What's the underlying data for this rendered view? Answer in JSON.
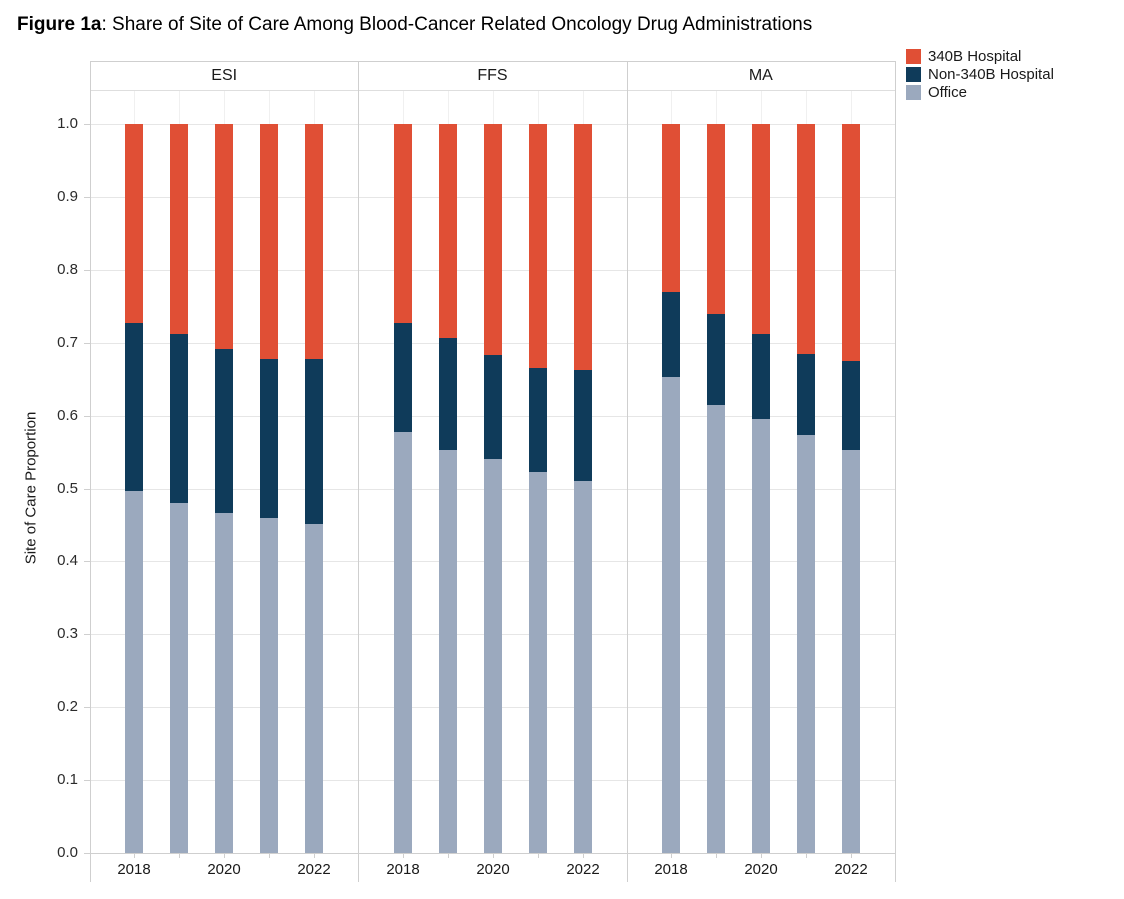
{
  "title": {
    "prefix": "Figure 1a",
    "rest": ": Share of Site of Care Among Blood-Cancer Related Oncology Drug Administrations"
  },
  "legend": {
    "items": [
      {
        "label": "340B Hospital",
        "color": "#E04F35"
      },
      {
        "label": "Non-340B Hospital",
        "color": "#0F3B5A"
      },
      {
        "label": "Office",
        "color": "#9BA9BE"
      }
    ]
  },
  "y_axis": {
    "title": "Site of Care Proportion",
    "tick_labels": [
      "0.0",
      "0.1",
      "0.2",
      "0.3",
      "0.4",
      "0.5",
      "0.6",
      "0.7",
      "0.8",
      "0.9",
      "1.0"
    ]
  },
  "x_axis": {
    "labeled_years": [
      "2018",
      "2020",
      "2022"
    ]
  },
  "chart_data": {
    "type": "bar",
    "stacked": true,
    "title": "Figure 1a: Share of Site of Care Among Blood-Cancer Related Oncology Drug Administrations",
    "xlabel": "",
    "ylabel": "Site of Care Proportion",
    "ylim": [
      0.0,
      1.0
    ],
    "grid": true,
    "legend_position": "top-right",
    "facet_labels": [
      "ESI",
      "FFS",
      "MA"
    ],
    "years": [
      2018,
      2019,
      2020,
      2021,
      2022
    ],
    "stack_order_bottom_to_top": [
      "Office",
      "Non-340B Hospital",
      "340B Hospital"
    ],
    "colors": {
      "340B Hospital": "#E04F35",
      "Non-340B Hospital": "#0F3B5A",
      "Office": "#9BA9BE"
    },
    "facets": [
      {
        "label": "ESI",
        "series": {
          "Office": [
            0.497,
            0.48,
            0.467,
            0.46,
            0.451
          ],
          "Non-340B Hospital": [
            0.23,
            0.232,
            0.225,
            0.217,
            0.226
          ],
          "340B Hospital": [
            0.273,
            0.288,
            0.308,
            0.323,
            0.323
          ]
        }
      },
      {
        "label": "FFS",
        "series": {
          "Office": [
            0.577,
            0.553,
            0.54,
            0.522,
            0.51
          ],
          "Non-340B Hospital": [
            0.15,
            0.154,
            0.143,
            0.143,
            0.153
          ],
          "340B Hospital": [
            0.273,
            0.293,
            0.317,
            0.335,
            0.337
          ]
        }
      },
      {
        "label": "MA",
        "series": {
          "Office": [
            0.653,
            0.615,
            0.596,
            0.573,
            0.553
          ],
          "Non-340B Hospital": [
            0.116,
            0.124,
            0.116,
            0.112,
            0.122
          ],
          "340B Hospital": [
            0.231,
            0.261,
            0.288,
            0.315,
            0.325
          ]
        }
      }
    ]
  }
}
